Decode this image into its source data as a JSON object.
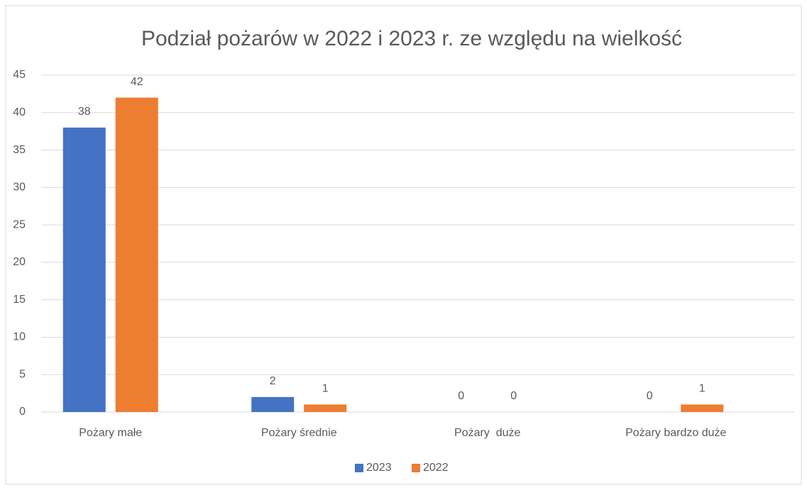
{
  "chart_data": {
    "type": "bar",
    "title": "Podział pożarów w 2022 i 2023 r. ze względu na wielkość",
    "categories": [
      "Pożary małe",
      "Pożary średnie",
      "Pożary  duże",
      "Pożary bardzo duże"
    ],
    "series": [
      {
        "name": "2023",
        "color": "#4472c4",
        "values": [
          38,
          2,
          0,
          0
        ]
      },
      {
        "name": "2022",
        "color": "#ed7d31",
        "values": [
          42,
          1,
          0,
          1
        ]
      }
    ],
    "ylim": [
      0,
      45
    ],
    "yticks": [
      0,
      5,
      10,
      15,
      20,
      25,
      30,
      35,
      40,
      45
    ],
    "grid": true,
    "legend": "bottom"
  }
}
